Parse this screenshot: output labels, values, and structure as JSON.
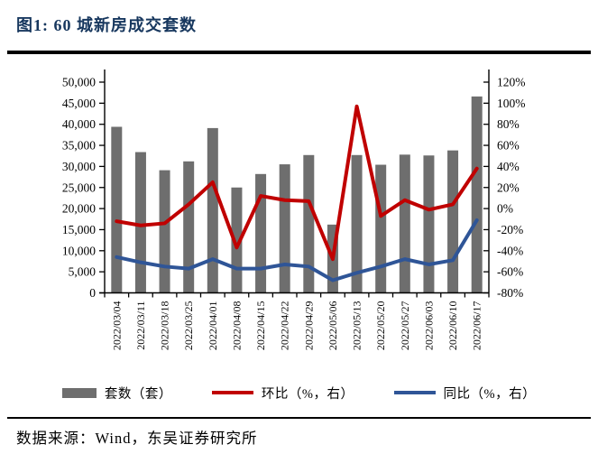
{
  "page": {
    "title": "图1: 60 城新房成交套数",
    "source": "数据来源：Wind，东吴证券研究所"
  },
  "colors": {
    "title": "#17375e",
    "axis": "#000000",
    "bar": "#6e6e6e",
    "mom_line": "#c00000",
    "yoy_line": "#2f5597"
  },
  "chart_data": {
    "type": "bar",
    "title": "60 城新房成交套数",
    "categories": [
      "2022/03/04",
      "2022/03/11",
      "2022/03/18",
      "2022/03/25",
      "2022/04/01",
      "2022/04/08",
      "2022/04/15",
      "2022/04/22",
      "2022/04/29",
      "2022/05/06",
      "2022/05/13",
      "2022/05/20",
      "2022/05/27",
      "2022/06/03",
      "2022/06/10",
      "2022/06/17"
    ],
    "series": [
      {
        "id": "units",
        "name": "套数（套）",
        "type": "bar",
        "axis": "left",
        "color": "#6e6e6e",
        "values": [
          39400,
          33400,
          29100,
          31200,
          39100,
          25000,
          28200,
          30500,
          32700,
          16200,
          32700,
          30400,
          32800,
          32600,
          33800,
          46600
        ]
      },
      {
        "id": "mom",
        "name": "环比（%，右）",
        "type": "line",
        "axis": "right",
        "color": "#c00000",
        "values": [
          -12,
          -16,
          -14,
          4,
          25,
          -37,
          12,
          8,
          7,
          -48,
          97,
          -7,
          8,
          -1,
          4,
          38
        ]
      },
      {
        "id": "yoy",
        "name": "同比（%，右）",
        "type": "line",
        "axis": "right",
        "color": "#2f5597",
        "values": [
          -46,
          -51,
          -55,
          -57,
          -48,
          -57,
          -57,
          -53,
          -55,
          -68,
          -61,
          -55,
          -48,
          -53,
          -49,
          -11
        ]
      }
    ],
    "left_axis": {
      "min": 0,
      "max": 50000,
      "step": 5000,
      "tick_labels": [
        "0",
        "5,000",
        "10,000",
        "15,000",
        "20,000",
        "25,000",
        "30,000",
        "35,000",
        "40,000",
        "45,000",
        "50,000"
      ]
    },
    "right_axis": {
      "min": -80,
      "max": 120,
      "step": 20,
      "tick_labels": [
        "-80%",
        "-60%",
        "-40%",
        "-20%",
        "0%",
        "20%",
        "40%",
        "60%",
        "80%",
        "100%",
        "120%"
      ]
    },
    "grid": false,
    "legend_position": "bottom"
  }
}
